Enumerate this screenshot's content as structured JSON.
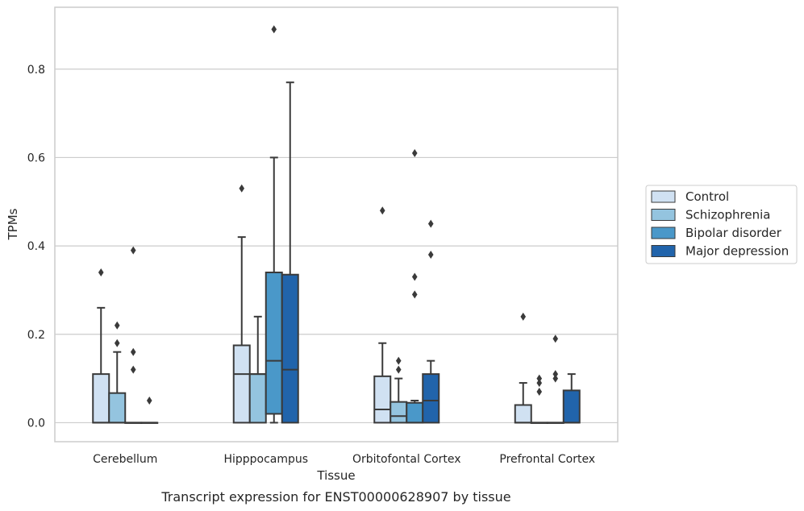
{
  "caption": "Transcript expression for ENST00000628907 by tissue",
  "chart_data": {
    "type": "box",
    "title": "",
    "xlabel": "Tissue",
    "ylabel": "TPMs",
    "ylim": [
      -0.043,
      0.94
    ],
    "yticks": [
      0.0,
      0.2,
      0.4,
      0.6,
      0.8
    ],
    "ytick_labels": [
      "0.0",
      "0.2",
      "0.4",
      "0.6",
      "0.8"
    ],
    "grid": "horizontal",
    "legend_position": "right",
    "categories": [
      "Cerebellum",
      "Hipppocampus",
      "Orbitofontal Cortex",
      "Prefrontal Cortex"
    ],
    "series": [
      {
        "name": "Control",
        "color": "#d0e1f2",
        "boxes": [
          {
            "q1": 0.0,
            "median": 0.0,
            "q3": 0.11,
            "whislo": 0.0,
            "whishi": 0.26,
            "fliers": [
              0.34
            ]
          },
          {
            "q1": 0.0,
            "median": 0.11,
            "q3": 0.175,
            "whislo": 0.0,
            "whishi": 0.42,
            "fliers": [
              0.53
            ]
          },
          {
            "q1": 0.0,
            "median": 0.03,
            "q3": 0.105,
            "whislo": 0.0,
            "whishi": 0.18,
            "fliers": [
              0.48
            ]
          },
          {
            "q1": 0.0,
            "median": 0.0,
            "q3": 0.04,
            "whislo": 0.0,
            "whishi": 0.09,
            "fliers": [
              0.24
            ]
          }
        ]
      },
      {
        "name": "Schizophrenia",
        "color": "#94c4df",
        "boxes": [
          {
            "q1": 0.0,
            "median": 0.0,
            "q3": 0.067,
            "whislo": 0.0,
            "whishi": 0.16,
            "fliers": [
              0.18,
              0.22
            ]
          },
          {
            "q1": 0.0,
            "median": 0.11,
            "q3": 0.11,
            "whislo": 0.0,
            "whishi": 0.24,
            "fliers": []
          },
          {
            "q1": 0.0,
            "median": 0.015,
            "q3": 0.047,
            "whislo": 0.0,
            "whishi": 0.1,
            "fliers": [
              0.12,
              0.14
            ]
          },
          {
            "q1": 0.0,
            "median": 0.0,
            "q3": 0.0,
            "whislo": 0.0,
            "whishi": 0.0,
            "fliers": [
              0.07,
              0.09,
              0.1
            ]
          }
        ]
      },
      {
        "name": "Bipolar disorder",
        "color": "#4a98c9",
        "boxes": [
          {
            "q1": 0.0,
            "median": 0.0,
            "q3": 0.0,
            "whislo": 0.0,
            "whishi": 0.0,
            "fliers": [
              0.12,
              0.16,
              0.39
            ]
          },
          {
            "q1": 0.02,
            "median": 0.14,
            "q3": 0.34,
            "whislo": 0.0,
            "whishi": 0.6,
            "fliers": [
              0.89
            ]
          },
          {
            "q1": 0.0,
            "median": 0.0,
            "q3": 0.045,
            "whislo": 0.0,
            "whishi": 0.05,
            "fliers": [
              0.29,
              0.33,
              0.61
            ]
          },
          {
            "q1": 0.0,
            "median": 0.0,
            "q3": 0.0,
            "whislo": 0.0,
            "whishi": 0.0,
            "fliers": [
              0.1,
              0.11,
              0.19
            ]
          }
        ]
      },
      {
        "name": "Major depression",
        "color": "#2164ab",
        "boxes": [
          {
            "q1": 0.0,
            "median": 0.0,
            "q3": 0.0,
            "whislo": 0.0,
            "whishi": 0.0,
            "fliers": [
              0.05
            ]
          },
          {
            "q1": 0.0,
            "median": 0.12,
            "q3": 0.335,
            "whislo": 0.0,
            "whishi": 0.77,
            "fliers": []
          },
          {
            "q1": 0.0,
            "median": 0.05,
            "q3": 0.11,
            "whislo": 0.0,
            "whishi": 0.14,
            "fliers": [
              0.38,
              0.45
            ]
          },
          {
            "q1": 0.0,
            "median": 0.0,
            "q3": 0.073,
            "whislo": 0.0,
            "whishi": 0.11,
            "fliers": []
          }
        ]
      }
    ]
  }
}
